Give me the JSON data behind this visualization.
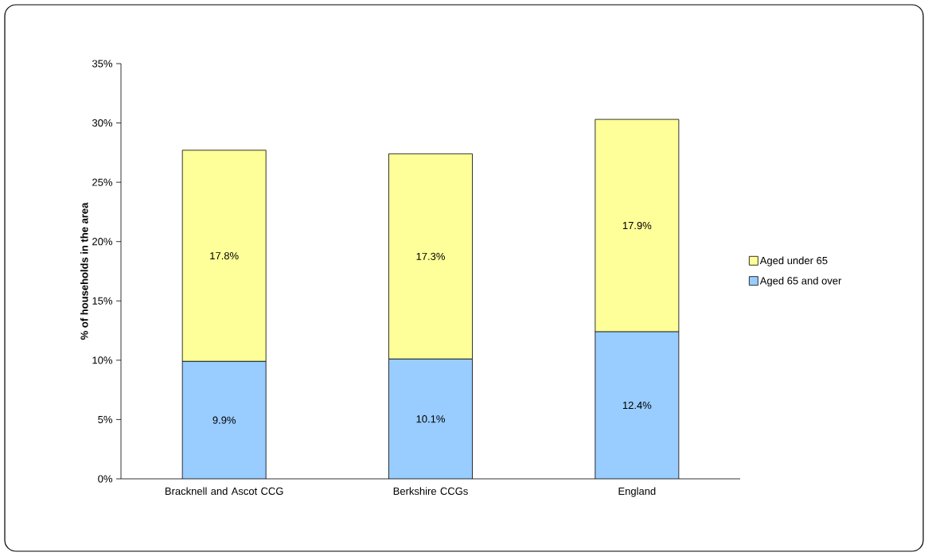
{
  "chart_data": {
    "type": "bar",
    "stacked": true,
    "ylabel": "% of households in the area",
    "categories": [
      "Bracknell and Ascot CCG",
      "Berkshire CCGs",
      "England"
    ],
    "series": [
      {
        "name": "Aged 65 and over",
        "color": "#99ccff",
        "values": [
          9.9,
          10.1,
          12.4
        ],
        "value_labels": [
          "9.9%",
          "10.1%",
          "12.4%"
        ]
      },
      {
        "name": "Aged under 65",
        "color": "#ffff99",
        "values": [
          17.8,
          17.3,
          17.9
        ],
        "value_labels": [
          "17.8%",
          "17.3%",
          "17.9%"
        ]
      }
    ],
    "ylim": [
      0,
      35
    ],
    "yticks": [
      {
        "value": 0,
        "label": "0%"
      },
      {
        "value": 5,
        "label": "5%"
      },
      {
        "value": 10,
        "label": "10%"
      },
      {
        "value": 15,
        "label": "15%"
      },
      {
        "value": 20,
        "label": "20%"
      },
      {
        "value": 25,
        "label": "25%"
      },
      {
        "value": 30,
        "label": "30%"
      },
      {
        "value": 35,
        "label": "35%"
      }
    ],
    "legend": "right",
    "grid": false
  }
}
